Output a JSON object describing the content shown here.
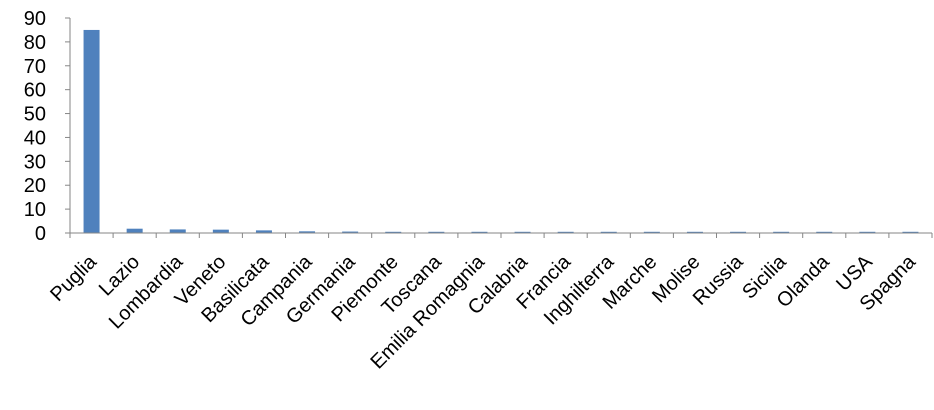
{
  "chart_data": {
    "type": "bar",
    "categories": [
      "Puglia",
      "Lazio",
      "Lombardia",
      "Veneto",
      "Basilicata",
      "Campania",
      "Germania",
      "Piemonte",
      "Toscana",
      "Emilia Romagnia",
      "Calabria",
      "Francia",
      "Inghilterra",
      "Marche",
      "Molise",
      "Russia",
      "Sicilia",
      "Olanda",
      "USA",
      "Spagna"
    ],
    "values": [
      85,
      1.8,
      1.5,
      1.4,
      1.1,
      0.7,
      0.6,
      0.5,
      0.4,
      0.3,
      0.25,
      0.2,
      0.15,
      0.12,
      0.1,
      0.1,
      0.1,
      0.08,
      0.08,
      0.05
    ],
    "y_ticks": [
      "0",
      "10",
      "20",
      "30",
      "40",
      "50",
      "60",
      "70",
      "80",
      "90"
    ],
    "ylim": [
      0,
      90
    ],
    "grid": false,
    "legend": "none",
    "bar_color": "#4f81bd",
    "axis_color": "#868686"
  }
}
